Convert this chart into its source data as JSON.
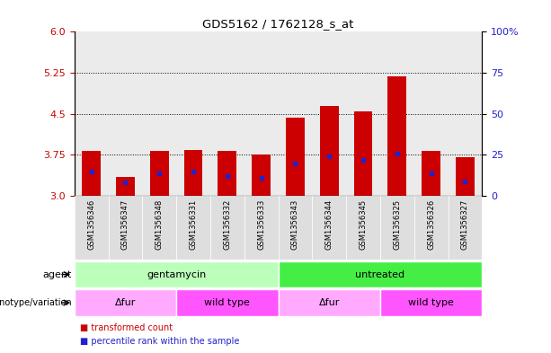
{
  "title": "GDS5162 / 1762128_s_at",
  "samples": [
    "GSM1356346",
    "GSM1356347",
    "GSM1356348",
    "GSM1356331",
    "GSM1356332",
    "GSM1356333",
    "GSM1356343",
    "GSM1356344",
    "GSM1356345",
    "GSM1356325",
    "GSM1356326",
    "GSM1356327"
  ],
  "transformed_count": [
    3.82,
    3.35,
    3.82,
    3.84,
    3.83,
    3.75,
    4.43,
    4.65,
    4.55,
    5.18,
    3.82,
    3.71
  ],
  "percentile_rank": [
    15,
    8,
    14,
    15,
    12,
    11,
    20,
    24,
    22,
    26,
    14,
    9
  ],
  "ylim_left": [
    3.0,
    6.0
  ],
  "ylim_right": [
    0,
    100
  ],
  "yticks_left": [
    3.0,
    3.75,
    4.5,
    5.25,
    6.0
  ],
  "yticks_right": [
    0,
    25,
    50,
    75,
    100
  ],
  "gridlines": [
    3.75,
    4.5,
    5.25
  ],
  "bar_color": "#cc0000",
  "percentile_color": "#2222cc",
  "agent_groups": [
    {
      "label": "gentamycin",
      "start": 0,
      "end": 6,
      "color": "#bbffbb"
    },
    {
      "label": "untreated",
      "start": 6,
      "end": 12,
      "color": "#44ee44"
    }
  ],
  "genotype_groups": [
    {
      "label": "Δfur",
      "start": 0,
      "end": 3,
      "color": "#ffaaff"
    },
    {
      "label": "wild type",
      "start": 3,
      "end": 6,
      "color": "#ff55ff"
    },
    {
      "label": "Δfur",
      "start": 6,
      "end": 9,
      "color": "#ffaaff"
    },
    {
      "label": "wild type",
      "start": 9,
      "end": 12,
      "color": "#ff55ff"
    }
  ],
  "legend_items": [
    {
      "label": "transformed count",
      "color": "#cc0000"
    },
    {
      "label": "percentile rank within the sample",
      "color": "#2222cc"
    }
  ],
  "left_labels": [
    {
      "text": "agent",
      "row": "agent"
    },
    {
      "text": "genotype/variation",
      "row": "geno"
    }
  ]
}
